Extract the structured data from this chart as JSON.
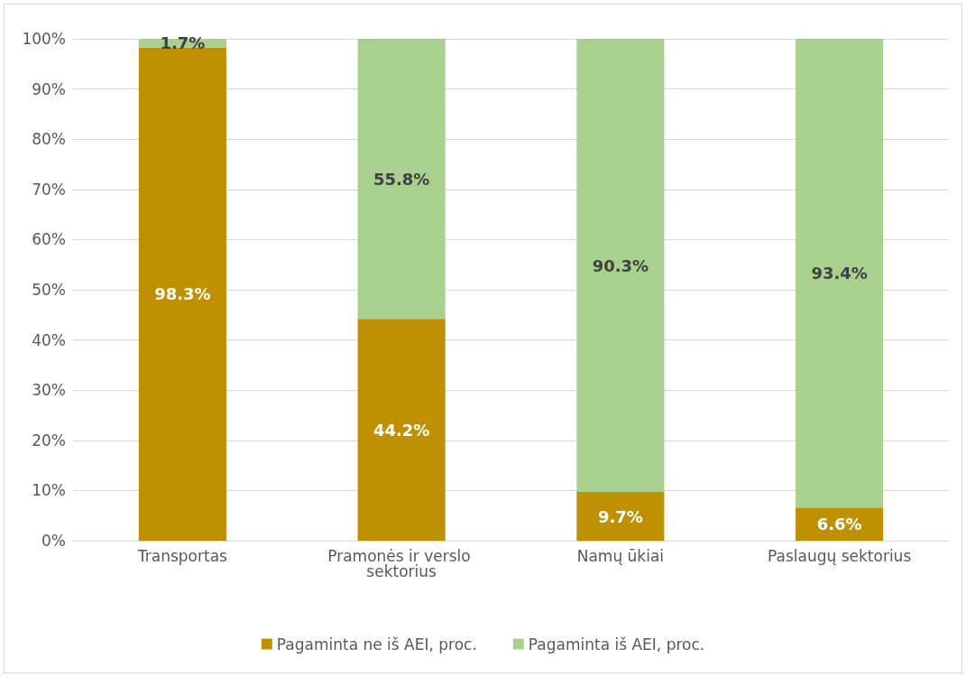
{
  "chart_data": {
    "type": "bar",
    "stacked": true,
    "categories": [
      "Transportas",
      "Pramonės ir verslo sektorius",
      "Namų ūkiai",
      "Paslaugų sektorius"
    ],
    "series": [
      {
        "name": "Pagaminta ne iš AEI, proc.",
        "color": "#bf9000",
        "values": [
          98.3,
          44.2,
          9.7,
          6.6
        ],
        "value_labels": [
          "98.3%",
          "44.2%",
          "9.7%",
          "6.6%"
        ]
      },
      {
        "name": "Pagaminta iš AEI, proc.",
        "color": "#a9d18e",
        "values": [
          1.7,
          55.8,
          90.3,
          93.4
        ],
        "value_labels": [
          "1.7%",
          "55.8%",
          "90.3%",
          "93.4%"
        ]
      }
    ],
    "ylim": [
      0,
      100
    ],
    "yticks": [
      {
        "value": 0,
        "label": "0%"
      },
      {
        "value": 10,
        "label": "10%"
      },
      {
        "value": 20,
        "label": "20%"
      },
      {
        "value": 30,
        "label": "30%"
      },
      {
        "value": 40,
        "label": "40%"
      },
      {
        "value": 50,
        "label": "50%"
      },
      {
        "value": 60,
        "label": "60%"
      },
      {
        "value": 70,
        "label": "70%"
      },
      {
        "value": 80,
        "label": "80%"
      },
      {
        "value": 90,
        "label": "90%"
      },
      {
        "value": 100,
        "label": "100%"
      }
    ],
    "grid": "y",
    "legend": "bottom"
  }
}
